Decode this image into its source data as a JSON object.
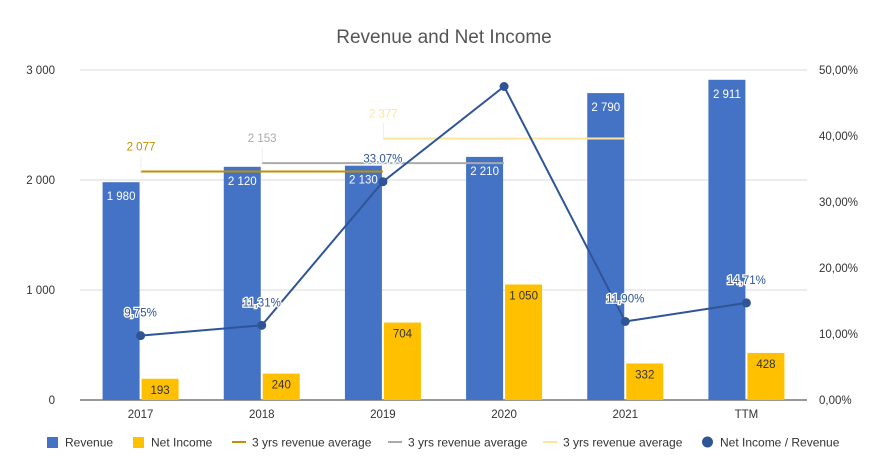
{
  "chart_data": {
    "type": "bar",
    "title": "Revenue and Net Income",
    "categories": [
      "2017",
      "2018",
      "2019",
      "2020",
      "2021",
      "TTM"
    ],
    "left_axis": {
      "ylim": [
        0,
        3000
      ],
      "ticks": [
        0,
        1000,
        2000,
        3000
      ],
      "tick_labels": [
        "0",
        "1 000",
        "2 000",
        "3 000"
      ]
    },
    "right_axis": {
      "ylim": [
        0,
        50
      ],
      "ticks": [
        0,
        10,
        20,
        30,
        40,
        50
      ],
      "tick_labels": [
        "0,00%",
        "10,00%",
        "20,00%",
        "30,00%",
        "40,00%",
        "50,00%"
      ]
    },
    "grid": true,
    "legend_position": "bottom",
    "series": [
      {
        "name": "Revenue",
        "kind": "bar",
        "axis": "left",
        "color": "#4472C4",
        "values": [
          1980,
          2120,
          2130,
          2210,
          2790,
          2911
        ],
        "labels": [
          "1 980",
          "2 120",
          "2 130",
          "2 210",
          "2 790",
          "2 911"
        ]
      },
      {
        "name": "Net Income",
        "kind": "bar",
        "axis": "left",
        "color": "#FFC000",
        "values": [
          193,
          240,
          704,
          1050,
          332,
          428
        ],
        "labels": [
          "193",
          "240",
          "704",
          "1 050",
          "332",
          "428"
        ]
      },
      {
        "name": "3 yrs revenue average",
        "kind": "segment",
        "axis": "left",
        "color": "#BF9000",
        "from": "2017",
        "to": "2019",
        "value": 2077,
        "label": "2 077"
      },
      {
        "name": "3 yrs revenue average",
        "kind": "segment",
        "axis": "left",
        "color": "#AAAAAA",
        "from": "2018",
        "to": "2020",
        "value": 2153,
        "label": "2 153"
      },
      {
        "name": "3 yrs revenue average",
        "kind": "segment",
        "axis": "left",
        "color": "#FFE599",
        "from": "2019",
        "to": "2021",
        "value": 2377,
        "label": "2 377"
      },
      {
        "name": "Net Income / Revenue",
        "kind": "line",
        "axis": "right",
        "color": "#2F5597",
        "values": [
          9.75,
          11.31,
          33.07,
          47.5,
          11.9,
          14.71
        ],
        "labels": [
          "9,75%",
          "11,31%",
          "33,07%",
          "",
          "11,90%",
          "14,71%"
        ]
      }
    ]
  }
}
